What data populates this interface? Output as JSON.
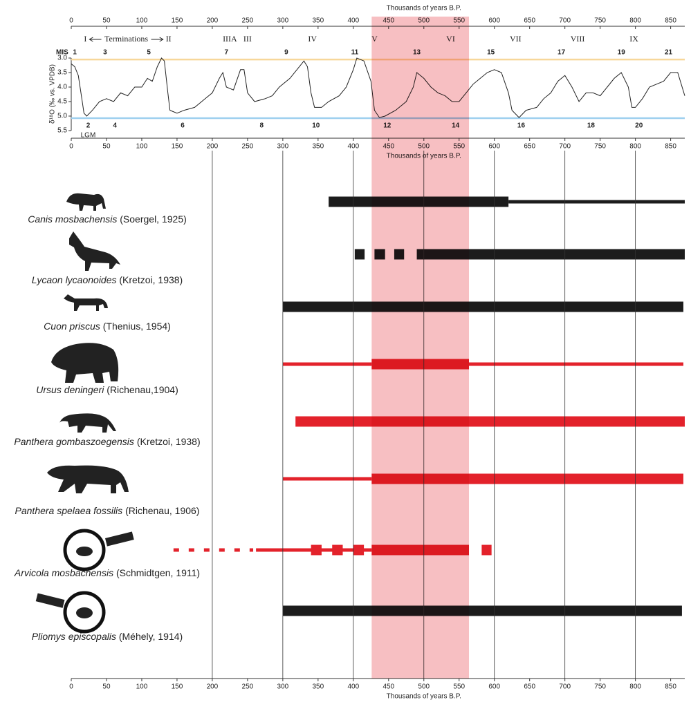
{
  "chart_data": [
    {
      "type": "line",
      "xlabel": "Thousands of years B.P.",
      "ylabel": "δ¹⁸O (‰ vs. VPDB)",
      "xlim": [
        0,
        870
      ],
      "xticks": [
        0,
        50,
        100,
        150,
        200,
        250,
        300,
        350,
        400,
        450,
        500,
        550,
        600,
        650,
        700,
        750,
        800,
        850
      ],
      "ylim": [
        3.0,
        5.5
      ],
      "yticks": [
        {
          "value": 3.0,
          "label": "3.0"
        },
        3.5,
        {
          "value": 4.0,
          "label": "4.0"
        },
        4.5,
        {
          "value": 5.0,
          "label": "5.0"
        },
        5.5
      ],
      "y_inverted": true,
      "color": "#222222",
      "x": [
        0,
        5,
        10,
        15,
        18,
        22,
        30,
        40,
        50,
        60,
        70,
        80,
        90,
        100,
        108,
        115,
        122,
        128,
        132,
        137,
        140,
        150,
        160,
        175,
        190,
        200,
        210,
        215,
        220,
        230,
        240,
        245,
        250,
        260,
        275,
        285,
        295,
        310,
        320,
        330,
        335,
        340,
        345,
        355,
        365,
        380,
        390,
        400,
        405,
        415,
        425,
        430,
        437,
        445,
        460,
        475,
        485,
        490,
        500,
        510,
        520,
        530,
        540,
        550,
        560,
        570,
        580,
        590,
        600,
        610,
        620,
        625,
        635,
        645,
        660,
        670,
        680,
        690,
        700,
        710,
        720,
        730,
        740,
        750,
        760,
        770,
        780,
        790,
        795,
        800,
        810,
        820,
        830,
        840,
        850,
        860,
        870
      ],
      "values": [
        3.2,
        3.3,
        3.6,
        4.4,
        4.9,
        5.0,
        4.8,
        4.5,
        4.4,
        4.5,
        4.2,
        4.3,
        4.0,
        4.0,
        3.7,
        3.8,
        3.3,
        3.0,
        3.1,
        4.2,
        4.8,
        4.9,
        4.8,
        4.7,
        4.4,
        4.2,
        3.7,
        3.5,
        4.0,
        4.1,
        3.4,
        3.4,
        4.2,
        4.5,
        4.4,
        4.3,
        4.0,
        3.7,
        3.4,
        3.1,
        3.3,
        4.2,
        4.7,
        4.7,
        4.5,
        4.3,
        4.0,
        3.4,
        3.0,
        3.1,
        3.8,
        4.8,
        5.05,
        5.0,
        4.8,
        4.5,
        4.0,
        3.5,
        3.7,
        4.0,
        4.2,
        4.3,
        4.5,
        4.5,
        4.2,
        3.9,
        3.7,
        3.5,
        3.4,
        3.5,
        4.2,
        4.8,
        5.05,
        4.8,
        4.7,
        4.4,
        4.2,
        3.8,
        3.6,
        4.0,
        4.5,
        4.2,
        4.2,
        4.3,
        4.0,
        3.7,
        3.5,
        4.0,
        4.7,
        4.7,
        4.4,
        4.0,
        3.9,
        3.8,
        3.5,
        3.5,
        4.3
      ],
      "reference_lines": [
        {
          "value": 3.05,
          "color": "#f7d79a"
        },
        {
          "value": 5.07,
          "color": "#9fd0ef"
        }
      ],
      "mis_title": "MIS",
      "lgm": "LGM",
      "mis_top": [
        {
          "text": "1",
          "x": 5
        },
        {
          "text": "3",
          "x": 48
        },
        {
          "text": "5",
          "x": 110
        },
        {
          "text": "7",
          "x": 220
        },
        {
          "text": "9",
          "x": 305
        },
        {
          "text": "11",
          "x": 402
        },
        {
          "text": "13",
          "x": 490
        },
        {
          "text": "15",
          "x": 595
        },
        {
          "text": "17",
          "x": 695
        },
        {
          "text": "19",
          "x": 780
        },
        {
          "text": "21",
          "x": 847
        }
      ],
      "mis_bottom": [
        {
          "text": "2",
          "x": 24
        },
        {
          "text": "4",
          "x": 62
        },
        {
          "text": "6",
          "x": 158
        },
        {
          "text": "8",
          "x": 270
        },
        {
          "text": "10",
          "x": 347
        },
        {
          "text": "12",
          "x": 448
        },
        {
          "text": "14",
          "x": 545
        },
        {
          "text": "16",
          "x": 638
        },
        {
          "text": "18",
          "x": 737
        },
        {
          "text": "20",
          "x": 805
        }
      ],
      "terminations_title": "Terminations",
      "terminations": [
        {
          "text": "I",
          "x": 20
        },
        {
          "text": "II",
          "x": 138
        },
        {
          "text": "IIIA",
          "x": 225
        },
        {
          "text": "III",
          "x": 250
        },
        {
          "text": "IV",
          "x": 342
        },
        {
          "text": "V",
          "x": 430
        },
        {
          "text": "VI",
          "x": 538
        },
        {
          "text": "VII",
          "x": 630
        },
        {
          "text": "VIII",
          "x": 718
        },
        {
          "text": "IX",
          "x": 798
        }
      ]
    },
    {
      "type": "range",
      "xlabel": "Thousands of years B.P.",
      "xlim": [
        0,
        870
      ],
      "xticks": [
        0,
        50,
        100,
        150,
        200,
        250,
        300,
        350,
        400,
        450,
        500,
        550,
        600,
        650,
        700,
        750,
        800,
        850
      ],
      "grid_lines": [
        200,
        300,
        400,
        500,
        600,
        700,
        800
      ],
      "highlight": {
        "range": [
          426,
          564
        ],
        "color": "#f4a9ad"
      },
      "series": [
        {
          "name": "Canis mosbachensis",
          "author": "(Soergel, 1925)",
          "color": "#1c1c1c",
          "segments": [
            {
              "start": 365,
              "end": 620,
              "style": "thick"
            },
            {
              "start": 620,
              "end": 870,
              "style": "thin"
            }
          ]
        },
        {
          "name": "Lycaon lycaonoides",
          "author": "(Kretzoi, 1938)",
          "color": "#1c1c1c",
          "segments": [
            {
              "start": 402,
              "end": 416,
              "style": "thick"
            },
            {
              "start": 430,
              "end": 445,
              "style": "thick"
            },
            {
              "start": 458,
              "end": 472,
              "style": "thick"
            },
            {
              "start": 490,
              "end": 870,
              "style": "thick"
            }
          ]
        },
        {
          "name": "Cuon priscus",
          "author": "(Thenius, 1954)",
          "color": "#1c1c1c",
          "segments": [
            {
              "start": 300,
              "end": 868,
              "style": "thick"
            }
          ]
        },
        {
          "name": "Ursus deningeri",
          "author": "(Richenau,1904)",
          "color": "#e3222b",
          "segments": [
            {
              "start": 300,
              "end": 426,
              "style": "thin"
            },
            {
              "start": 426,
              "end": 564,
              "style": "thick"
            },
            {
              "start": 564,
              "end": 868,
              "style": "thin"
            }
          ]
        },
        {
          "name": "Panthera gombaszoegensis",
          "author": "(Kretzoi, 1938)",
          "color": "#e3222b",
          "segments": [
            {
              "start": 318,
              "end": 870,
              "style": "thick"
            }
          ]
        },
        {
          "name": "Panthera spelaea fossilis",
          "author": "(Richenau, 1906)",
          "color": "#e3222b",
          "segments": [
            {
              "start": 300,
              "end": 426,
              "style": "thin"
            },
            {
              "start": 426,
              "end": 868,
              "style": "thick"
            }
          ]
        },
        {
          "name": "Arvicola mosbachensis",
          "author": "(Schmidtgen, 1911)",
          "color": "#e3222b",
          "segments": [
            {
              "start": 145,
              "end": 258,
              "style": "dotted"
            },
            {
              "start": 262,
              "end": 426,
              "style": "thin"
            },
            {
              "start": 340,
              "end": 355,
              "style": "thick"
            },
            {
              "start": 370,
              "end": 385,
              "style": "thick"
            },
            {
              "start": 400,
              "end": 415,
              "style": "thick"
            },
            {
              "start": 426,
              "end": 564,
              "style": "thick"
            },
            {
              "start": 582,
              "end": 596,
              "style": "thick"
            }
          ]
        },
        {
          "name": "Pliomys episcopalis",
          "author": "(Méhely, 1914)",
          "color": "#1c1c1c",
          "segments": [
            {
              "start": 300,
              "end": 866,
              "style": "thick"
            }
          ]
        }
      ]
    }
  ]
}
